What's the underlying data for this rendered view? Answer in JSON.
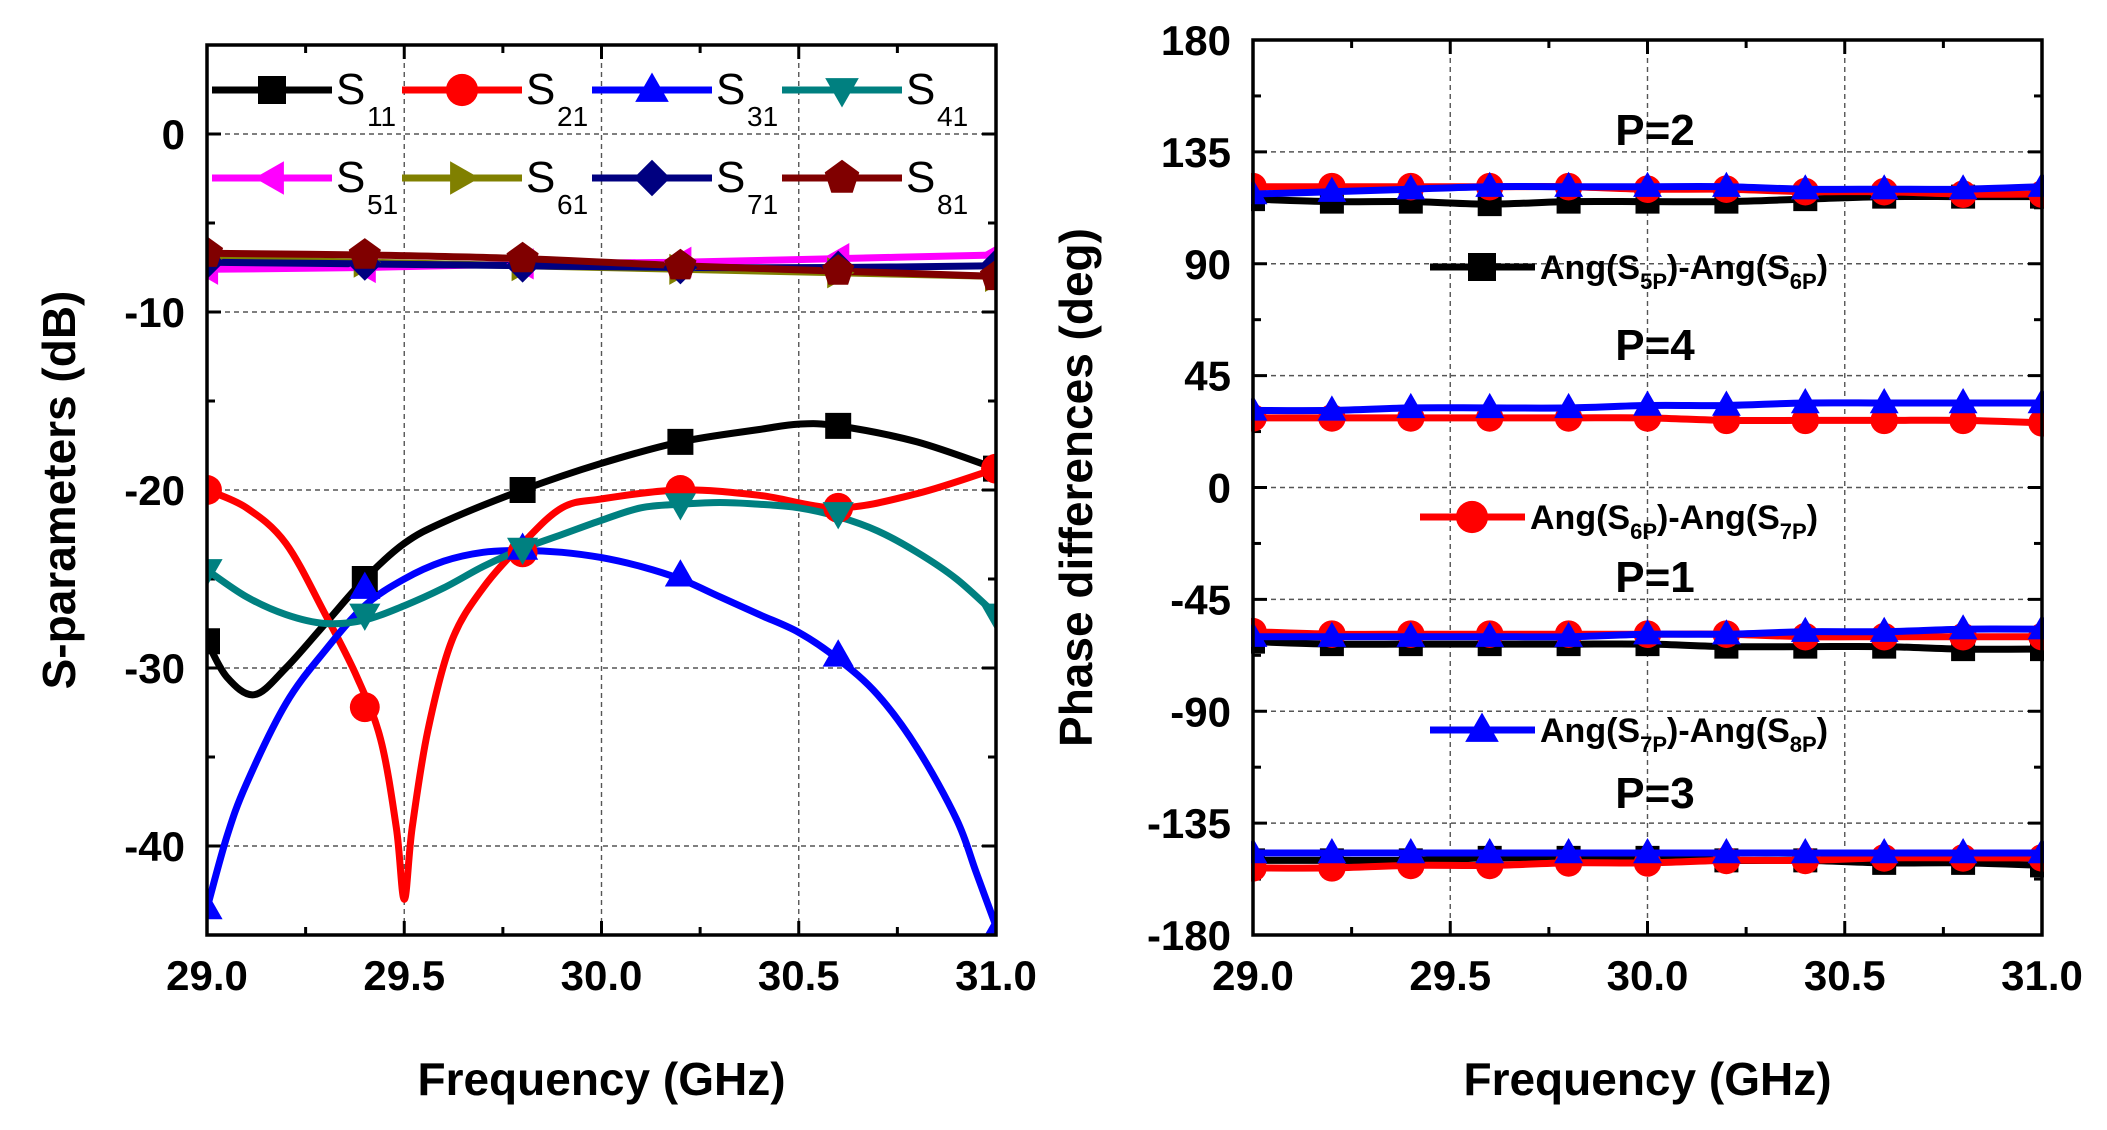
{
  "chart_data": [
    {
      "type": "line",
      "xlabel": "Frequency (GHz)",
      "ylabel": "S-parameters (dB)",
      "xlim": [
        29.0,
        31.0
      ],
      "ylim": [
        -45,
        5
      ],
      "xticks": [
        29.0,
        29.5,
        30.0,
        30.5,
        31.0
      ],
      "xtick_labels": [
        "29.0",
        "29.5",
        "30.0",
        "30.5",
        "31.0"
      ],
      "yticks": [
        0,
        -10,
        -20,
        -30,
        -40
      ],
      "ytick_labels": [
        "0",
        "-10",
        "-20",
        "-30",
        "-40"
      ],
      "grid": true,
      "legend_position": "top",
      "series": [
        {
          "name": "S11",
          "base": "S",
          "sub": "11",
          "color": "#000000",
          "marker": "square",
          "x": [
            29.0,
            29.05,
            29.12,
            29.2,
            29.3,
            29.4,
            29.5,
            29.6,
            29.8,
            30.0,
            30.2,
            30.4,
            30.5,
            30.6,
            30.8,
            31.0
          ],
          "y": [
            -28.5,
            -30.5,
            -31.5,
            -30.0,
            -27.5,
            -25.0,
            -23.0,
            -21.8,
            -20.0,
            -18.5,
            -17.3,
            -16.6,
            -16.3,
            -16.4,
            -17.3,
            -18.8
          ],
          "markers": [
            [
              29.0,
              -28.5
            ],
            [
              29.4,
              -25.0
            ],
            [
              29.8,
              -20.0
            ],
            [
              30.2,
              -17.3
            ],
            [
              30.6,
              -16.4
            ],
            [
              31.0,
              -18.8
            ]
          ]
        },
        {
          "name": "S21",
          "base": "S",
          "sub": "21",
          "color": "#ff0000",
          "marker": "circle",
          "x": [
            29.0,
            29.1,
            29.2,
            29.3,
            29.38,
            29.44,
            29.48,
            29.5,
            29.52,
            29.56,
            29.62,
            29.7,
            29.8,
            29.9,
            30.0,
            30.2,
            30.4,
            30.6,
            30.8,
            31.0
          ],
          "y": [
            -20.0,
            -21.0,
            -23.0,
            -27.0,
            -30.5,
            -34.0,
            -39.0,
            -43.0,
            -39.0,
            -33.5,
            -28.5,
            -25.5,
            -23.0,
            -21.0,
            -20.5,
            -20.0,
            -20.3,
            -21.0,
            -20.2,
            -18.8
          ],
          "markers": [
            [
              29.0,
              -20.0
            ],
            [
              29.4,
              -32.2
            ],
            [
              29.8,
              -23.5
            ],
            [
              30.2,
              -20.0
            ],
            [
              30.6,
              -21.0
            ],
            [
              31.0,
              -18.8
            ]
          ]
        },
        {
          "name": "S31",
          "base": "S",
          "sub": "31",
          "color": "#0000ff",
          "marker": "triangle-up",
          "x": [
            29.0,
            29.05,
            29.1,
            29.2,
            29.3,
            29.4,
            29.5,
            29.6,
            29.7,
            29.8,
            29.9,
            30.0,
            30.1,
            30.2,
            30.3,
            30.4,
            30.5,
            30.6,
            30.7,
            30.8,
            30.9,
            30.95,
            31.0
          ],
          "y": [
            -43.5,
            -39.5,
            -36.5,
            -32.0,
            -29.0,
            -26.5,
            -25.0,
            -24.0,
            -23.5,
            -23.4,
            -23.5,
            -23.8,
            -24.3,
            -25.0,
            -26.0,
            -27.0,
            -28.0,
            -29.5,
            -31.5,
            -34.5,
            -38.5,
            -41.5,
            -44.5
          ],
          "markers": [
            [
              29.0,
              -43.5
            ],
            [
              29.4,
              -25.5
            ],
            [
              29.8,
              -23.3
            ],
            [
              30.2,
              -24.8
            ],
            [
              30.6,
              -29.3
            ],
            [
              31.0,
              -44.8
            ]
          ]
        },
        {
          "name": "S41",
          "base": "S",
          "sub": "41",
          "color": "#008080",
          "marker": "triangle-down",
          "x": [
            29.0,
            29.1,
            29.2,
            29.3,
            29.4,
            29.5,
            29.6,
            29.7,
            29.8,
            29.9,
            30.0,
            30.1,
            30.2,
            30.3,
            30.4,
            30.5,
            30.6,
            30.7,
            30.8,
            30.9,
            31.0
          ],
          "y": [
            -24.5,
            -26.0,
            -27.0,
            -27.5,
            -27.3,
            -26.5,
            -25.5,
            -24.3,
            -23.3,
            -22.5,
            -21.7,
            -21.0,
            -20.8,
            -20.7,
            -20.8,
            -21.0,
            -21.5,
            -22.3,
            -23.5,
            -25.0,
            -27.0
          ],
          "markers": [
            [
              29.0,
              -24.5
            ],
            [
              29.4,
              -27.0
            ],
            [
              29.8,
              -23.3
            ],
            [
              30.2,
              -20.8
            ],
            [
              30.6,
              -21.3
            ],
            [
              31.0,
              -27.0
            ]
          ]
        },
        {
          "name": "S51",
          "base": "S",
          "sub": "51",
          "color": "#ff00ff",
          "marker": "triangle-left",
          "x": [
            29.0,
            29.4,
            29.8,
            30.2,
            30.6,
            31.0
          ],
          "y": [
            -7.6,
            -7.5,
            -7.3,
            -7.2,
            -7.0,
            -6.8
          ],
          "markers": [
            [
              29.0,
              -7.6
            ],
            [
              29.4,
              -7.5
            ],
            [
              29.8,
              -7.3
            ],
            [
              30.2,
              -7.2
            ],
            [
              30.6,
              -7.0
            ],
            [
              31.0,
              -6.8
            ]
          ]
        },
        {
          "name": "S61",
          "base": "S",
          "sub": "61",
          "color": "#808000",
          "marker": "triangle-right",
          "x": [
            29.0,
            29.4,
            29.8,
            30.2,
            30.6,
            31.0
          ],
          "y": [
            -7.0,
            -7.2,
            -7.4,
            -7.6,
            -7.8,
            -8.0
          ],
          "markers": [
            [
              29.0,
              -7.0
            ],
            [
              29.4,
              -7.2
            ],
            [
              29.8,
              -7.4
            ],
            [
              30.2,
              -7.6
            ],
            [
              30.6,
              -7.8
            ],
            [
              31.0,
              -8.0
            ]
          ]
        },
        {
          "name": "S71",
          "base": "S",
          "sub": "71",
          "color": "#000080",
          "marker": "diamond",
          "x": [
            29.0,
            29.4,
            29.8,
            30.2,
            30.6,
            31.0
          ],
          "y": [
            -7.2,
            -7.3,
            -7.4,
            -7.5,
            -7.5,
            -7.4
          ],
          "markers": [
            [
              29.0,
              -7.2
            ],
            [
              29.4,
              -7.3
            ],
            [
              29.8,
              -7.4
            ],
            [
              30.2,
              -7.5
            ],
            [
              30.6,
              -7.5
            ],
            [
              31.0,
              -7.4
            ]
          ]
        },
        {
          "name": "S81",
          "base": "S",
          "sub": "81",
          "color": "#800000",
          "marker": "pentagon",
          "x": [
            29.0,
            29.4,
            29.8,
            30.2,
            30.6,
            31.0
          ],
          "y": [
            -6.7,
            -6.8,
            -7.0,
            -7.4,
            -7.7,
            -8.0
          ],
          "markers": [
            [
              29.0,
              -6.7
            ],
            [
              29.4,
              -6.8
            ],
            [
              29.8,
              -7.0
            ],
            [
              30.2,
              -7.4
            ],
            [
              30.6,
              -7.7
            ],
            [
              31.0,
              -8.0
            ]
          ]
        }
      ]
    },
    {
      "type": "line",
      "xlabel": "Frequency (GHz)",
      "ylabel": "Phase differences (deg)",
      "xlim": [
        29.0,
        31.0
      ],
      "ylim": [
        -180,
        180
      ],
      "xticks": [
        29.0,
        29.5,
        30.0,
        30.5,
        31.0
      ],
      "xtick_labels": [
        "29.0",
        "29.5",
        "30.0",
        "30.5",
        "31.0"
      ],
      "yticks": [
        180,
        135,
        90,
        45,
        0,
        -45,
        -90,
        -135,
        -180
      ],
      "ytick_labels": [
        "180",
        "135",
        "90",
        "45",
        "0",
        "-45",
        "-90",
        "-135",
        "-180"
      ],
      "grid": true,
      "legend_position": "inline",
      "marker_x": [
        29.0,
        29.2,
        29.4,
        29.6,
        29.8,
        30.0,
        30.2,
        30.4,
        30.6,
        30.8,
        31.0
      ],
      "legend": [
        {
          "label_a": "Ang(S",
          "sub_a": "5P",
          "label_b": ")-Ang(S",
          "sub_b": "6P",
          "label_c": ")",
          "color": "#000000",
          "marker": "square"
        },
        {
          "label_a": "Ang(S",
          "sub_a": "6P",
          "label_b": ")-Ang(S",
          "sub_b": "7P",
          "label_c": ")",
          "color": "#ff0000",
          "marker": "circle"
        },
        {
          "label_a": "Ang(S",
          "sub_a": "7P",
          "label_b": ")-Ang(S",
          "sub_b": "8P",
          "label_c": ")",
          "color": "#0000ff",
          "marker": "triangle-up"
        }
      ],
      "groups": [
        {
          "label": "P=2",
          "series": [
            {
              "name": "Ang(S5P)-Ang(S6P)",
              "color": "#000000",
              "marker": "square",
              "y": [
                116,
                115,
                115,
                114,
                115,
                115,
                115,
                116,
                117,
                117,
                117
              ]
            },
            {
              "name": "Ang(S6P)-Ang(S7P)",
              "color": "#ff0000",
              "marker": "circle",
              "y": [
                121,
                121,
                121,
                121,
                121,
                120,
                120,
                119,
                119,
                118,
                118
              ]
            },
            {
              "name": "Ang(S7P)-Ang(S8P)",
              "color": "#0000ff",
              "marker": "triangle-up",
              "y": [
                118,
                119,
                120,
                121,
                121,
                121,
                121,
                120,
                120,
                120,
                121
              ]
            }
          ]
        },
        {
          "label": "P=4",
          "series": [
            {
              "name": "Ang(S6P)-Ang(S7P)",
              "color": "#ff0000",
              "marker": "circle",
              "y": [
                28,
                28,
                28,
                28,
                28,
                28,
                27,
                27,
                27,
                27,
                26
              ]
            },
            {
              "name": "Ang(S7P)-Ang(S8P)",
              "color": "#0000ff",
              "marker": "triangle-up",
              "y": [
                31,
                31,
                32,
                32,
                32,
                33,
                33,
                34,
                34,
                34,
                34
              ]
            }
          ]
        },
        {
          "label": "P=1",
          "series": [
            {
              "name": "Ang(S5P)-Ang(S6P)",
              "color": "#000000",
              "marker": "square",
              "y": [
                -62,
                -63,
                -63,
                -63,
                -63,
                -63,
                -64,
                -64,
                -64,
                -65,
                -65
              ]
            },
            {
              "name": "Ang(S6P)-Ang(S7P)",
              "color": "#ff0000",
              "marker": "circle",
              "y": [
                -58,
                -59,
                -59,
                -59,
                -59,
                -59,
                -59,
                -60,
                -60,
                -60,
                -60
              ]
            },
            {
              "name": "Ang(S7P)-Ang(S8P)",
              "color": "#0000ff",
              "marker": "triangle-up",
              "y": [
                -60,
                -60,
                -60,
                -60,
                -60,
                -59,
                -59,
                -58,
                -58,
                -57,
                -57
              ]
            }
          ]
        },
        {
          "label": "P=3",
          "series": [
            {
              "name": "Ang(S5P)-Ang(S6P)",
              "color": "#000000",
              "marker": "square",
              "y": [
                -150,
                -150,
                -150,
                -149,
                -149,
                -149,
                -150,
                -150,
                -151,
                -151,
                -152
              ]
            },
            {
              "name": "Ang(S6P)-Ang(S7P)",
              "color": "#ff0000",
              "marker": "circle",
              "y": [
                -153,
                -153,
                -152,
                -152,
                -151,
                -151,
                -150,
                -150,
                -149,
                -149,
                -149
              ]
            },
            {
              "name": "Ang(S7P)-Ang(S8P)",
              "color": "#0000ff",
              "marker": "triangle-up",
              "y": [
                -147,
                -147,
                -147,
                -147,
                -147,
                -147,
                -147,
                -147,
                -147,
                -147,
                -147
              ]
            }
          ]
        }
      ]
    }
  ]
}
